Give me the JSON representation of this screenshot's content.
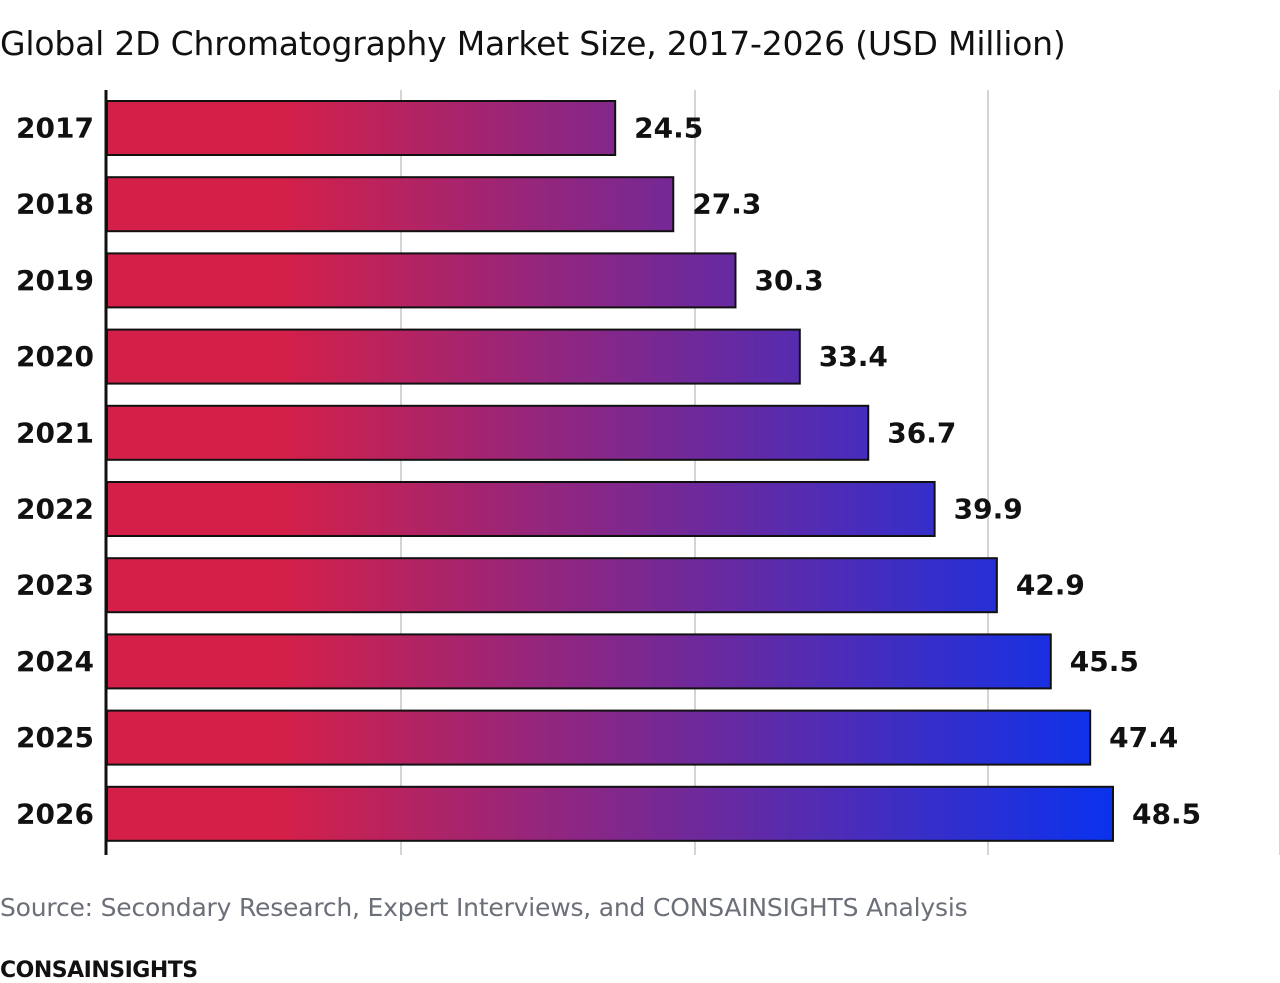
{
  "chart_data": {
    "type": "bar",
    "orientation": "horizontal",
    "title": "Global 2D Chromatography Market Size, 2017-2026 (USD Million)",
    "categories": [
      "2017",
      "2018",
      "2019",
      "2020",
      "2021",
      "2022",
      "2023",
      "2024",
      "2025",
      "2026"
    ],
    "values": [
      24.5,
      27.3,
      30.3,
      33.4,
      36.7,
      39.9,
      42.9,
      45.5,
      47.4,
      48.5
    ],
    "xlim": [
      0,
      48.5
    ],
    "grid": true,
    "bar_gradient": [
      "#d42048",
      "#0a32ee"
    ]
  },
  "footer": {
    "source": "Source: Secondary Research, Expert Interviews, and CONSAINSIGHTS Analysis",
    "brand": "CONSAINSIGHTS"
  }
}
